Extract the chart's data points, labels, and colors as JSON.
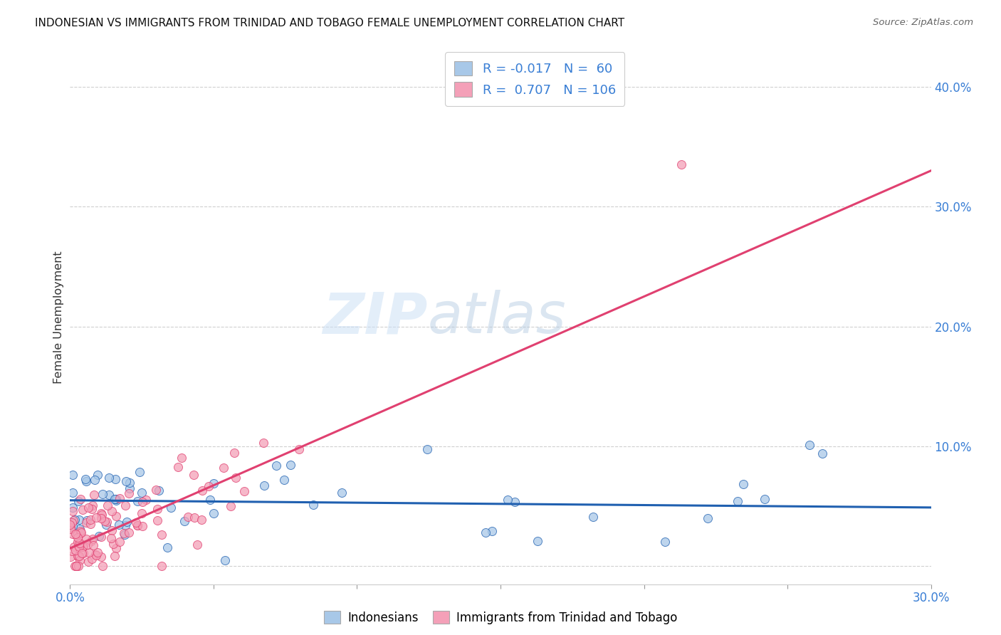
{
  "title": "INDONESIAN VS IMMIGRANTS FROM TRINIDAD AND TOBAGO FEMALE UNEMPLOYMENT CORRELATION CHART",
  "source": "Source: ZipAtlas.com",
  "ylabel": "Female Unemployment",
  "xlim": [
    0.0,
    0.3
  ],
  "ylim": [
    -0.015,
    0.43
  ],
  "color_indonesian": "#a8c8e8",
  "color_tt": "#f4a0b8",
  "line_color_indonesian": "#2060b0",
  "line_color_tt": "#e04070",
  "R_indonesian": -0.017,
  "N_indonesian": 60,
  "R_tt": 0.707,
  "N_tt": 106,
  "watermark_zip": "ZIP",
  "watermark_atlas": "atlas",
  "legend_label_1": "Indonesians",
  "legend_label_2": "Immigrants from Trinidad and Tobago",
  "tt_intercept": 0.015,
  "tt_slope": 1.05,
  "ind_intercept": 0.055,
  "ind_slope": -0.02
}
